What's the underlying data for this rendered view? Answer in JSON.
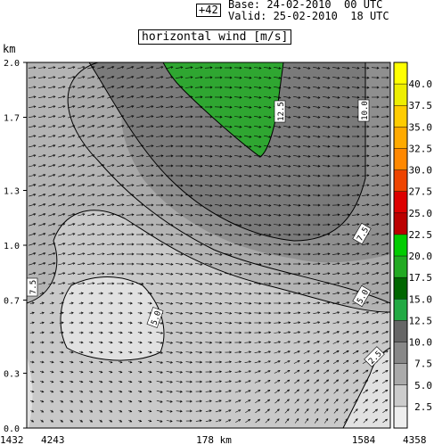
{
  "header": {
    "lead": "+42",
    "base": "Base: 24-02-2010  00 UTC",
    "valid": "Valid: 25-02-2010  18 UTC"
  },
  "chart_data": {
    "type": "heatmap",
    "title": "horizontal wind [m/s]",
    "ylabel": "km",
    "ylim": [
      0.0,
      2.0
    ],
    "y_ticks": [
      "2.0",
      "1.7",
      "1.3",
      "1.0",
      "0.7",
      "0.3",
      "0.0"
    ],
    "x_ticks": {
      "left_outer": "1432",
      "left_inner": "4243",
      "center": "178 km",
      "right_inner": "1584",
      "right_outer": "4358"
    },
    "colorbar": {
      "levels": [
        "2.5",
        "5.0",
        "7.5",
        "10.0",
        "12.5",
        "15.0",
        "17.5",
        "20.0",
        "22.5",
        "25.0",
        "27.5",
        "30.0",
        "32.5",
        "35.0",
        "37.5",
        "40.0"
      ],
      "colors": [
        "#eeeeee",
        "#cccccc",
        "#aaaaaa",
        "#888888",
        "#666666",
        "#22aa44",
        "#006600",
        "#22aa22",
        "#00cc00",
        "#bb0000",
        "#dd0000",
        "#ee4400",
        "#ff8800",
        "#ffaa00",
        "#ffcc00",
        "#eeee00",
        "#ffff00"
      ]
    },
    "contour_labels": [
      "12.5",
      "10.0",
      "7.5",
      "7.5",
      "5.0",
      "5.0",
      "2.5"
    ],
    "grid": false
  }
}
